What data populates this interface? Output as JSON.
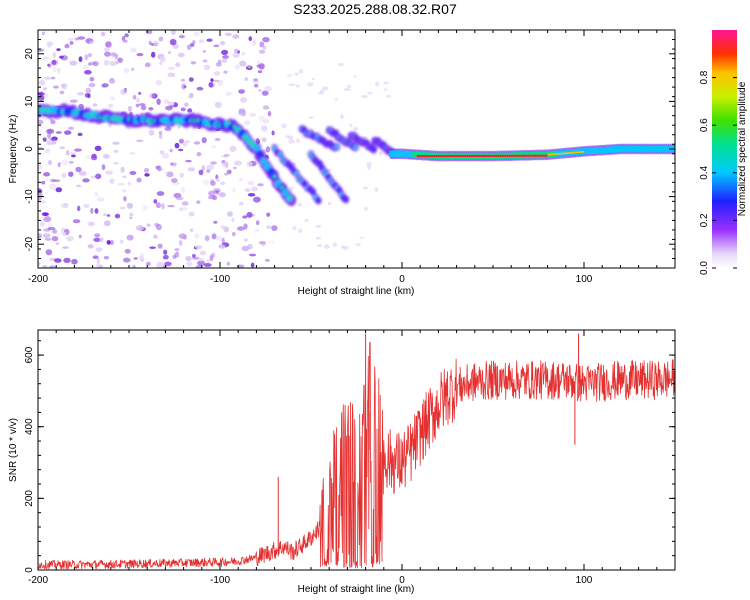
{
  "title": "S233.2025.288.08.32.R07",
  "chart_data": [
    {
      "type": "heatmap",
      "title": "S233.2025.288.08.32.R07",
      "xlabel": "Height of straight line (km)",
      "ylabel": "Frequency (Hz)",
      "xlim": [
        -200,
        150
      ],
      "ylim": [
        -25,
        25
      ],
      "xticks": [
        -200,
        -100,
        0,
        100
      ],
      "yticks": [
        -20,
        -10,
        0,
        10,
        20
      ],
      "colorbar": {
        "label": "Normalized spectral amplitude",
        "range": [
          0,
          1
        ],
        "ticks": [
          0.0,
          0.2,
          0.4,
          0.6,
          0.8
        ]
      },
      "ridge": {
        "x": [
          -200,
          -185,
          -170,
          -150,
          -130,
          -115,
          -100,
          -95,
          -90,
          -85,
          -80,
          -75,
          -70,
          -65,
          -60
        ],
        "freq": [
          8,
          8,
          7,
          6,
          6,
          6,
          5,
          5,
          4,
          2,
          0,
          -3,
          -6,
          -9,
          -11
        ]
      },
      "tone": {
        "x": [
          0,
          20,
          50,
          80,
          100,
          120,
          150
        ],
        "freq": [
          -1,
          -1.5,
          -1.5,
          -1.2,
          -0.5,
          0,
          0
        ]
      }
    },
    {
      "type": "line",
      "xlabel": "Height of straight line (km)",
      "ylabel": "SNR (10 * v/v)",
      "xlim": [
        -200,
        150
      ],
      "ylim": [
        0,
        670
      ],
      "xticks": [
        -200,
        -100,
        0,
        100
      ],
      "yticks": [
        0,
        200,
        400,
        600
      ],
      "series": [
        {
          "name": "SNR",
          "color": "#e53030",
          "x": [
            -200,
            -180,
            -160,
            -140,
            -120,
            -100,
            -90,
            -80,
            -70,
            -65,
            -60,
            -55,
            -50,
            -45,
            -40,
            -35,
            -30,
            -25,
            -20,
            -15,
            -10,
            -5,
            0,
            5,
            10,
            15,
            20,
            25,
            30,
            40,
            50,
            60,
            70,
            80,
            90,
            95,
            100,
            110,
            120,
            130,
            140,
            150
          ],
          "y": [
            15,
            15,
            16,
            18,
            20,
            22,
            25,
            35,
            55,
            65,
            50,
            70,
            90,
            120,
            180,
            230,
            280,
            250,
            340,
            330,
            320,
            300,
            300,
            330,
            380,
            420,
            460,
            490,
            510,
            525,
            530,
            530,
            530,
            530,
            530,
            525,
            520,
            525,
            530,
            530,
            530,
            535
          ]
        }
      ],
      "spikes": [
        {
          "x": -68,
          "y": 260
        },
        {
          "x": -20,
          "y": 660
        },
        {
          "x": -18,
          "y": 440
        },
        {
          "x": 97,
          "y": 660
        },
        {
          "x": 95,
          "y": 350
        }
      ]
    }
  ]
}
